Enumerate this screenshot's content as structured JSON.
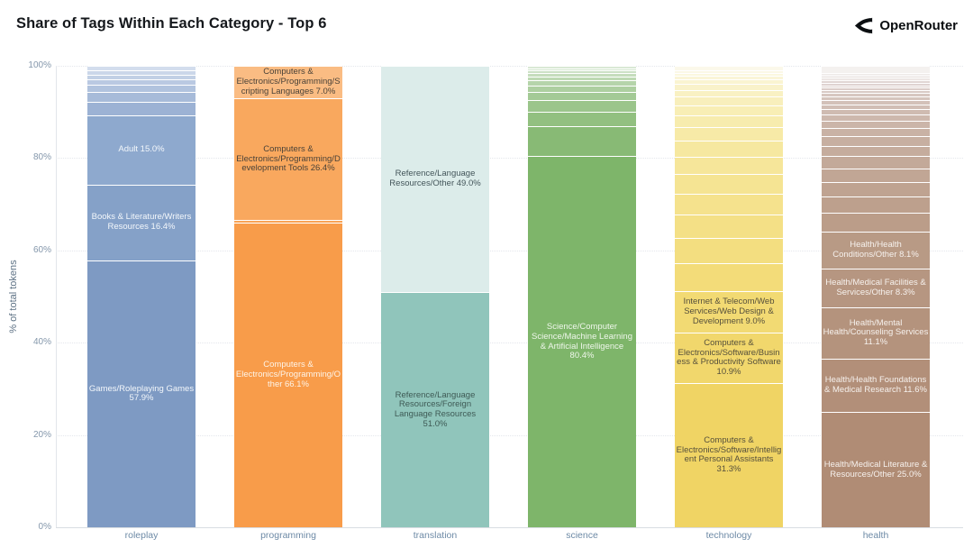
{
  "header": {
    "title": "Share of Tags Within Each Category - Top 6",
    "brand": "OpenRouter",
    "brand_icon": "openrouter-chevron-icon"
  },
  "chart_data": {
    "type": "bar",
    "stacked": true,
    "title": "Share of Tags Within Each Category - Top 6",
    "xlabel": "",
    "ylabel": "% of total tokens",
    "ylim": [
      0,
      100
    ],
    "grid": true,
    "yticks": [
      "0%",
      "20%",
      "40%",
      "60%",
      "80%",
      "100%"
    ],
    "ytick_values": [
      0,
      20,
      40,
      60,
      80,
      100
    ],
    "categories": [
      "roleplay",
      "programming",
      "translation",
      "science",
      "technology",
      "health"
    ],
    "bars": [
      {
        "category": "roleplay",
        "segments": [
          {
            "name": "Games/Roleplaying Games",
            "value": 57.9,
            "label": "Games/Roleplaying Games 57.9%",
            "color": "#7e9ac3",
            "text_color": "#f3f7fb"
          },
          {
            "name": "Books & Literature/Writers Resources",
            "value": 16.4,
            "label": "Books & Literature/Writers Resources 16.4%",
            "color": "#85a1c8",
            "text_color": "#f3f7fb"
          },
          {
            "name": "Adult",
            "value": 15.0,
            "label": "Adult 15.0%",
            "color": "#8ea9ce",
            "text_color": "#f3f7fb"
          },
          {
            "value": 2.8,
            "color": "#9cb2d4"
          },
          {
            "value": 2.3,
            "color": "#a7bbd9"
          },
          {
            "value": 1.5,
            "color": "#b1c3de"
          },
          {
            "value": 1.2,
            "color": "#bac9e2"
          },
          {
            "value": 1.0,
            "color": "#c2d0e5"
          },
          {
            "value": 0.9,
            "color": "#cbd7e9"
          },
          {
            "value": 1.0,
            "color": "#d3dded"
          }
        ]
      },
      {
        "category": "programming",
        "segments": [
          {
            "name": "Computers & Electronics/Programming/Other",
            "value": 66.1,
            "label": "Computers & Electronics/Programming/Other 66.1%",
            "color": "#f89c4a",
            "text_color": "#fdf3e7"
          },
          {
            "value": 0.5,
            "color": "#f9a355"
          },
          {
            "name": "Computers & Electronics/Programming/Development Tools",
            "value": 26.4,
            "label": "Computers & Electronics/Programming/Development Tools 26.4%",
            "color": "#f9a85e",
            "text_color": "#4a4238"
          },
          {
            "name": "Computers & Electronics/Programming/Scripting Languages",
            "value": 7.0,
            "label": "Computers & Electronics/Programming/Scripting Languages 7.0%",
            "color": "#fabc83",
            "text_color": "#4a4238"
          }
        ]
      },
      {
        "category": "translation",
        "segments": [
          {
            "name": "Reference/Language Resources/Foreign Language Resources",
            "value": 51.0,
            "label": "Reference/Language Resources/Foreign Language Resources 51.0%",
            "color": "#90c5bb",
            "text_color": "#3e5a55"
          },
          {
            "name": "Reference/Language Resources/Other",
            "value": 49.0,
            "label": "Reference/Language Resources/Other 49.0%",
            "color": "#dcecea",
            "text_color": "#43555a"
          }
        ]
      },
      {
        "category": "science",
        "segments": [
          {
            "name": "Science/Computer Science/Machine Learning & Artificial Intelligence",
            "value": 80.4,
            "label": "Science/Computer Science/Machine Learning & Artificial Intelligence 80.4%",
            "color": "#7eb56a",
            "text_color": "#eef6ea"
          },
          {
            "value": 6.5,
            "color": "#88ba75"
          },
          {
            "value": 3.2,
            "color": "#92c080"
          },
          {
            "value": 2.4,
            "color": "#9bc58b"
          },
          {
            "value": 1.8,
            "color": "#a4ca96"
          },
          {
            "value": 1.4,
            "color": "#adcfa0"
          },
          {
            "value": 1.1,
            "color": "#b5d4aa"
          },
          {
            "value": 0.9,
            "color": "#bdd9b3"
          },
          {
            "value": 0.7,
            "color": "#c5ddbc"
          },
          {
            "value": 0.6,
            "color": "#cce1c5"
          },
          {
            "value": 0.5,
            "color": "#d3e5cd"
          },
          {
            "value": 0.5,
            "color": "#dae9d5"
          }
        ]
      },
      {
        "category": "technology",
        "segments": [
          {
            "name": "Computers & Electronics/Software/Intelligent Personal Assistants",
            "value": 31.3,
            "label": "Computers & Electronics/Software/Intelligent Personal Assistants 31.3%",
            "color": "#f0d464",
            "text_color": "#56503c"
          },
          {
            "name": "Computers & Electronics/Software/Business & Productivity Software",
            "value": 10.9,
            "label": "Computers & Electronics/Software/Business & Productivity Software 10.9%",
            "color": "#f1d76c",
            "text_color": "#56503c"
          },
          {
            "name": "Internet & Telecom/Web Services/Web Design & Development",
            "value": 9.0,
            "label": "Internet & Telecom/Web Services/Web Design & Development 9.0%",
            "color": "#f2da73",
            "text_color": "#56503c"
          },
          {
            "value": 6.0,
            "color": "#f3dc79"
          },
          {
            "value": 5.5,
            "color": "#f3de80"
          },
          {
            "value": 5.0,
            "color": "#f4e086"
          },
          {
            "value": 4.6,
            "color": "#f5e28d"
          },
          {
            "value": 4.2,
            "color": "#f5e493"
          },
          {
            "value": 3.8,
            "color": "#f6e69a"
          },
          {
            "value": 3.4,
            "color": "#f6e8a0"
          },
          {
            "value": 3.0,
            "color": "#f7eaa7"
          },
          {
            "value": 2.6,
            "color": "#f7ecae"
          },
          {
            "value": 2.2,
            "color": "#f8eeb5"
          },
          {
            "value": 1.8,
            "color": "#f8efbc"
          },
          {
            "value": 1.5,
            "color": "#f9f1c3"
          },
          {
            "value": 1.2,
            "color": "#f9f2ca"
          },
          {
            "value": 1.0,
            "color": "#faf4d1"
          },
          {
            "value": 0.8,
            "color": "#faf5d8"
          },
          {
            "value": 0.7,
            "color": "#fbf7df"
          },
          {
            "value": 0.6,
            "color": "#fbf8e6"
          },
          {
            "value": 0.9,
            "color": "#fbf8ea"
          }
        ]
      },
      {
        "category": "health",
        "segments": [
          {
            "name": "Health/Medical Literature & Resources/Other",
            "value": 25.0,
            "label": "Health/Medical Literature & Resources/Other 25.0%",
            "color": "#b08c75",
            "text_color": "#f6f1ed"
          },
          {
            "name": "Health/Health Foundations & Medical Research",
            "value": 11.6,
            "label": "Health/Health Foundations & Medical Research 11.6%",
            "color": "#b28f79",
            "text_color": "#f6f1ed"
          },
          {
            "name": "Health/Mental Health/Counseling Services",
            "value": 11.1,
            "label": "Health/Mental Health/Counseling Services 11.1%",
            "color": "#b4937d",
            "text_color": "#f6f1ed"
          },
          {
            "name": "Health/Medical Facilities & Services/Other",
            "value": 8.3,
            "label": "Health/Medical Facilities & Services/Other 8.3%",
            "color": "#b69681",
            "text_color": "#f6f1ed"
          },
          {
            "name": "Health/Health Conditions/Other",
            "value": 8.1,
            "label": "Health/Health Conditions/Other 8.1%",
            "color": "#b89a85",
            "text_color": "#f6f1ed"
          },
          {
            "value": 4.0,
            "color": "#bb9d89"
          },
          {
            "value": 3.6,
            "color": "#bda08d"
          },
          {
            "value": 3.2,
            "color": "#bfa391"
          },
          {
            "value": 2.9,
            "color": "#c1a695"
          },
          {
            "value": 2.6,
            "color": "#c3a999"
          },
          {
            "value": 2.3,
            "color": "#c5ac9d"
          },
          {
            "value": 2.0,
            "color": "#c7afa1"
          },
          {
            "value": 1.8,
            "color": "#c9b2a5"
          },
          {
            "value": 1.6,
            "color": "#cbb5a9"
          },
          {
            "value": 1.4,
            "color": "#cdb8ad"
          },
          {
            "value": 1.2,
            "color": "#cfbbb1"
          },
          {
            "value": 1.0,
            "color": "#d1beb5"
          },
          {
            "value": 0.9,
            "color": "#d3c1b9"
          },
          {
            "value": 0.8,
            "color": "#d5c4bd"
          },
          {
            "value": 0.7,
            "color": "#d7c7c1"
          },
          {
            "value": 0.6,
            "color": "#d9cac5"
          },
          {
            "value": 0.6,
            "color": "#dbcdc9"
          },
          {
            "value": 0.5,
            "color": "#ddd0cd"
          },
          {
            "value": 0.5,
            "color": "#dfd3d1"
          },
          {
            "value": 0.5,
            "color": "#e1d6d4"
          },
          {
            "value": 0.4,
            "color": "#e3d9d7"
          },
          {
            "value": 0.4,
            "color": "#e6dedb"
          },
          {
            "value": 0.4,
            "color": "#e9e2e0"
          },
          {
            "value": 0.4,
            "color": "#ece6e4"
          },
          {
            "value": 1.6,
            "color": "#f4f1ef"
          }
        ]
      }
    ]
  }
}
